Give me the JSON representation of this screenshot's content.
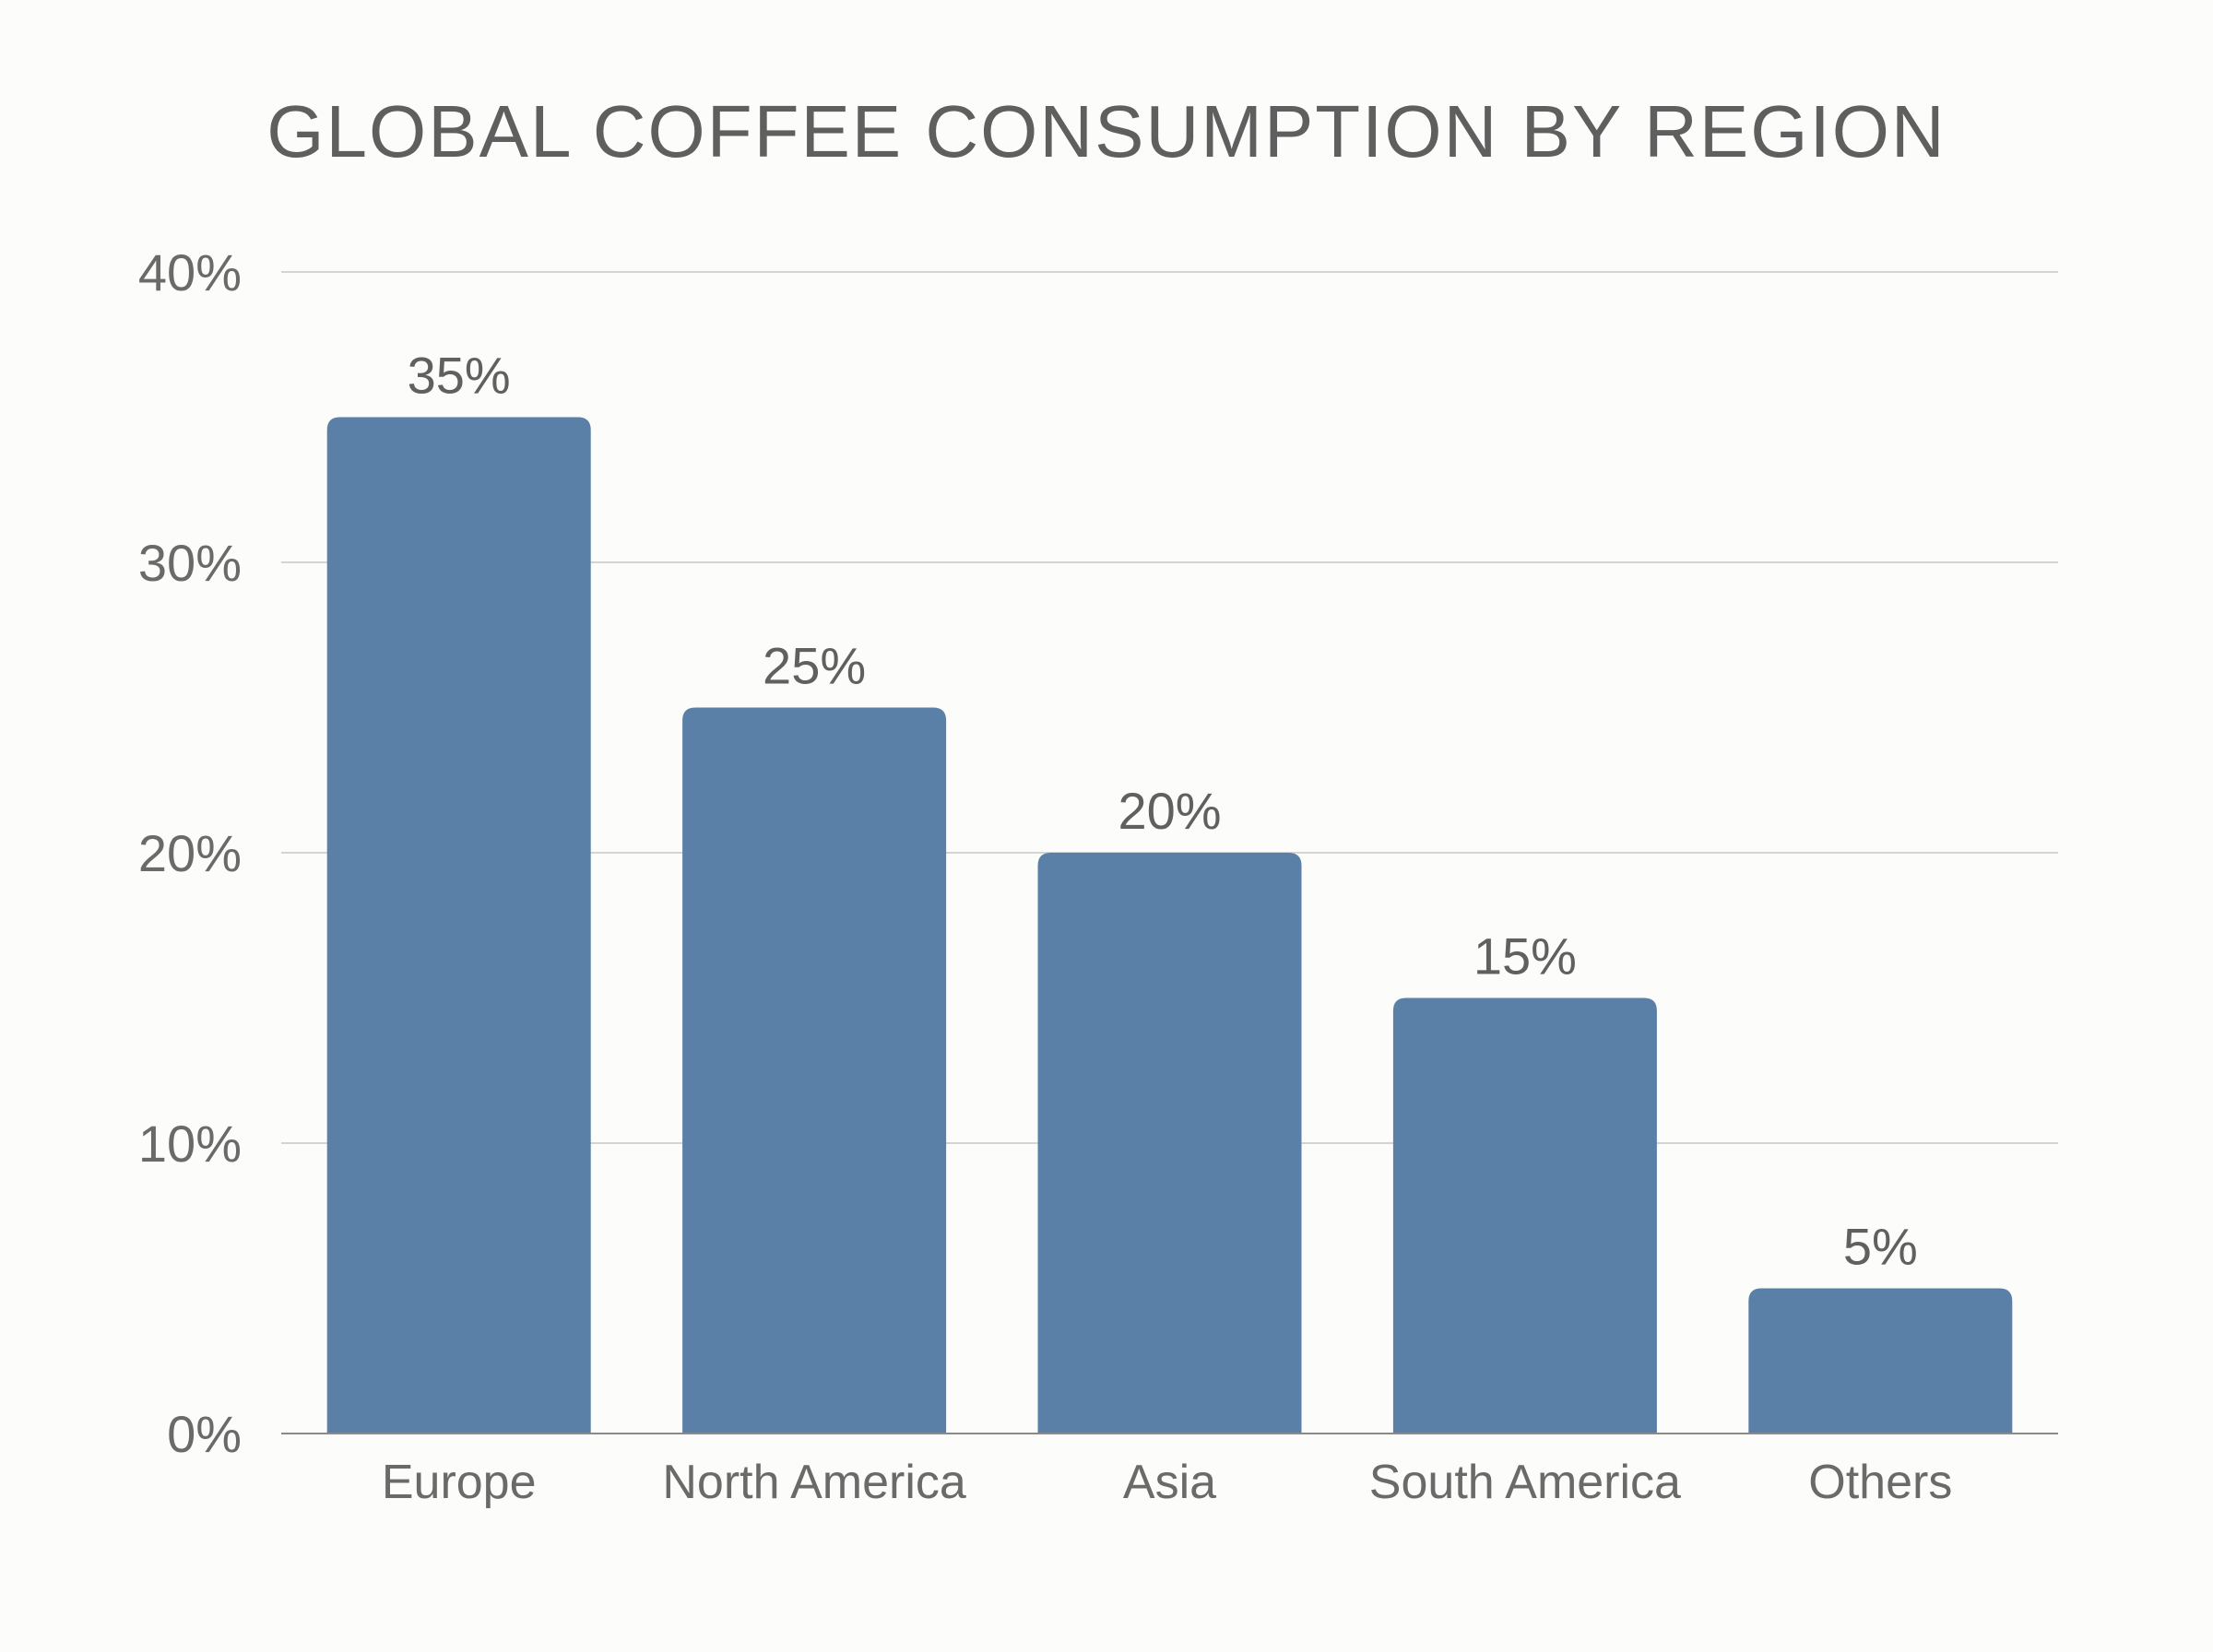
{
  "chart_data": {
    "type": "bar",
    "title": "GLOBAL COFFEE CONSUMPTION BY REGION",
    "xlabel": "",
    "ylabel": "",
    "categories": [
      "Europe",
      "North America",
      "Asia",
      "South America",
      "Others"
    ],
    "values": [
      35,
      25,
      20,
      15,
      5
    ],
    "data_labels": [
      "35%",
      "25%",
      "20%",
      "15%",
      "5%"
    ],
    "ylim": [
      0,
      40
    ],
    "yticks": [
      0,
      10,
      20,
      30,
      40
    ],
    "ytick_labels": [
      "0%",
      "10%",
      "20%",
      "30%",
      "40%"
    ],
    "grid": true,
    "legend": "none",
    "bar_color": "#5b80a8"
  }
}
